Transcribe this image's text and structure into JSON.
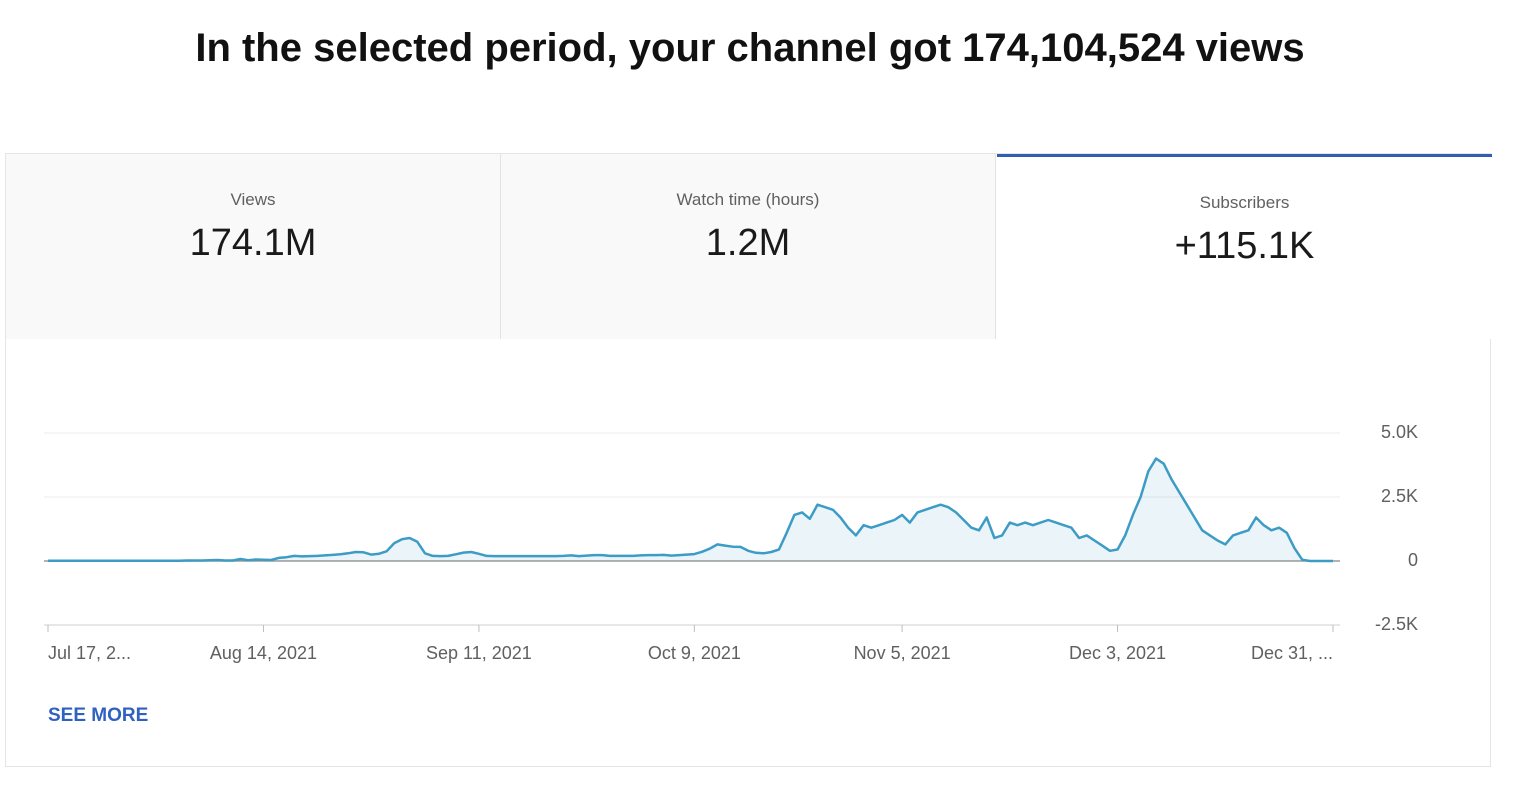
{
  "header": {
    "title": "In the selected period, your channel got 174,104,524 views"
  },
  "tabs": [
    {
      "label": "Views",
      "value": "174.1M"
    },
    {
      "label": "Watch time (hours)",
      "value": "1.2M"
    },
    {
      "label": "Subscribers",
      "value": "+115.1K",
      "selected": true
    }
  ],
  "chart_data": {
    "type": "line",
    "color": "#3d9cc5",
    "grid": true,
    "categories": [
      "Jul 17, 2...",
      null,
      null,
      null,
      null,
      null,
      null,
      null,
      null,
      null,
      null,
      null,
      null,
      null,
      null,
      null,
      null,
      null,
      null,
      null,
      null,
      null,
      null,
      null,
      null,
      null,
      null,
      null,
      "Aug 14, 2021",
      null,
      null,
      null,
      null,
      null,
      null,
      null,
      null,
      null,
      null,
      null,
      null,
      null,
      null,
      null,
      null,
      null,
      null,
      null,
      null,
      null,
      null,
      null,
      null,
      null,
      null,
      null,
      "Sep 11, 2021",
      null,
      null,
      null,
      null,
      null,
      null,
      null,
      null,
      null,
      null,
      null,
      null,
      null,
      null,
      null,
      null,
      null,
      null,
      null,
      null,
      null,
      null,
      null,
      null,
      null,
      null,
      null,
      "Oct 9, 2021",
      null,
      null,
      null,
      null,
      null,
      null,
      null,
      null,
      null,
      null,
      null,
      null,
      null,
      null,
      null,
      null,
      null,
      null,
      null,
      null,
      null,
      null,
      null,
      null,
      null,
      null,
      "Nov 5, 2021",
      null,
      null,
      null,
      null,
      null,
      null,
      null,
      null,
      null,
      null,
      null,
      null,
      null,
      null,
      null,
      null,
      null,
      null,
      null,
      null,
      null,
      null,
      null,
      null,
      null,
      null,
      null,
      "Dec 3, 2021",
      null,
      null,
      null,
      null,
      null,
      null,
      null,
      null,
      null,
      null,
      null,
      null,
      null,
      null,
      null,
      null,
      null,
      null,
      null,
      null,
      null,
      null,
      null,
      null,
      null,
      null,
      null,
      "Dec 31, ..."
    ],
    "values": [
      10,
      10,
      10,
      10,
      10,
      10,
      10,
      10,
      10,
      10,
      10,
      10,
      10,
      10,
      10,
      10,
      10,
      10,
      20,
      20,
      20,
      30,
      40,
      20,
      20,
      80,
      30,
      60,
      50,
      40,
      120,
      150,
      200,
      180,
      190,
      200,
      220,
      240,
      260,
      300,
      350,
      340,
      250,
      280,
      380,
      700,
      850,
      900,
      750,
      300,
      200,
      190,
      200,
      260,
      330,
      350,
      280,
      200,
      190,
      190,
      190,
      190,
      190,
      190,
      190,
      190,
      190,
      200,
      220,
      190,
      210,
      230,
      230,
      200,
      200,
      200,
      200,
      220,
      230,
      230,
      240,
      210,
      230,
      250,
      270,
      360,
      480,
      650,
      600,
      560,
      550,
      400,
      320,
      300,
      350,
      450,
      1100,
      1800,
      1900,
      1650,
      2200,
      2100,
      2000,
      1700,
      1300,
      1000,
      1400,
      1300,
      1400,
      1500,
      1600,
      1800,
      1500,
      1900,
      2000,
      2100,
      2200,
      2100,
      1900,
      1600,
      1300,
      1200,
      1700,
      900,
      1000,
      1500,
      1400,
      1500,
      1400,
      1500,
      1600,
      1500,
      1400,
      1300,
      900,
      1000,
      800,
      600,
      400,
      450,
      1000,
      1800,
      2500,
      3500,
      4000,
      3800,
      3200,
      2700,
      2200,
      1700,
      1200,
      1000,
      800,
      650,
      1000,
      1100,
      1200,
      1700,
      1400,
      1200,
      1300,
      1100,
      500,
      50,
      0,
      0,
      0,
      0
    ],
    "ylim": [
      -2500,
      5000
    ],
    "yticks": [
      {
        "value": -2500,
        "label": "-2.5K"
      },
      0,
      {
        "value": 2500,
        "label": "2.5K"
      },
      {
        "value": 5000,
        "label": "5.0K"
      }
    ]
  },
  "footer": {
    "link": "SEE MORE"
  }
}
